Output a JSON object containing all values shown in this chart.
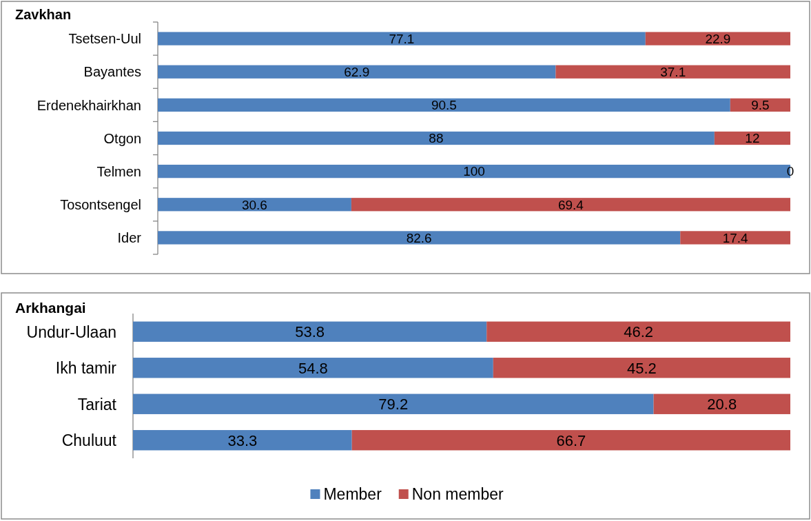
{
  "chart_data": [
    {
      "type": "bar",
      "orientation": "horizontal",
      "stacked": true,
      "title": "Zavkhan",
      "categories": [
        "Tsetsen-Uul",
        "Bayantes",
        "Erdenekhairkhan",
        "Otgon",
        "Telmen",
        "Tosontsengel",
        "Ider"
      ],
      "series": [
        {
          "color": "#4f81bd",
          "values": [
            77.1,
            62.9,
            90.5,
            88,
            100,
            30.6,
            82.6
          ]
        },
        {
          "color": "#c0504d",
          "values": [
            22.9,
            37.1,
            9.5,
            12,
            0,
            69.4,
            17.4
          ]
        }
      ],
      "xlim": [
        0,
        100
      ],
      "tick_labels": "y",
      "data_labels": true,
      "legend": false
    },
    {
      "type": "bar",
      "orientation": "horizontal",
      "stacked": true,
      "title": "Arkhangai",
      "categories": [
        "Undur-Ulaan",
        "Ikh tamir",
        "Tariat",
        "Chuluut"
      ],
      "series": [
        {
          "name": "Member",
          "color": "#4f81bd",
          "values": [
            53.8,
            54.8,
            79.2,
            33.3
          ]
        },
        {
          "name": "Non member",
          "color": "#c0504d",
          "values": [
            46.2,
            45.2,
            20.8,
            66.7
          ]
        }
      ],
      "xlim": [
        0,
        100
      ],
      "tick_labels": "y",
      "data_labels": true,
      "legend": "bottom"
    }
  ]
}
